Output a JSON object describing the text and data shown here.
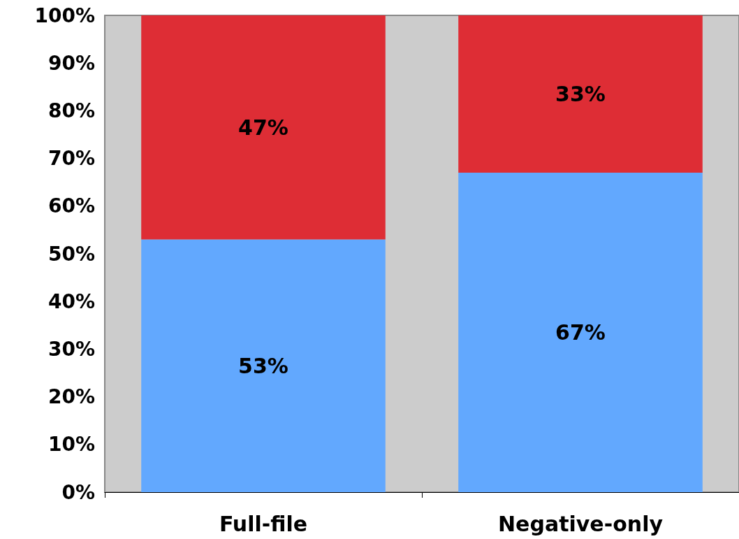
{
  "chart_data": {
    "type": "bar",
    "stacked": true,
    "categories": [
      "Full-file",
      "Negative-only"
    ],
    "series": [
      {
        "color": "#62a8fe",
        "values": [
          53,
          67
        ],
        "value_labels": [
          "53%",
          "67%"
        ]
      },
      {
        "color": "#de2d35",
        "values": [
          47,
          33
        ],
        "value_labels": [
          "47%",
          "33%"
        ]
      }
    ],
    "ylim": [
      0,
      100
    ],
    "yticks": [
      {
        "value": 0,
        "label": "0%"
      },
      {
        "value": 10,
        "label": "10%"
      },
      {
        "value": 20,
        "label": "20%"
      },
      {
        "value": 30,
        "label": "30%"
      },
      {
        "value": 40,
        "label": "40%"
      },
      {
        "value": 50,
        "label": "50%"
      },
      {
        "value": 60,
        "label": "60%"
      },
      {
        "value": 70,
        "label": "70%"
      },
      {
        "value": 80,
        "label": "80%"
      },
      {
        "value": 90,
        "label": "90%"
      },
      {
        "value": 100,
        "label": "100%"
      }
    ],
    "grid": false
  }
}
